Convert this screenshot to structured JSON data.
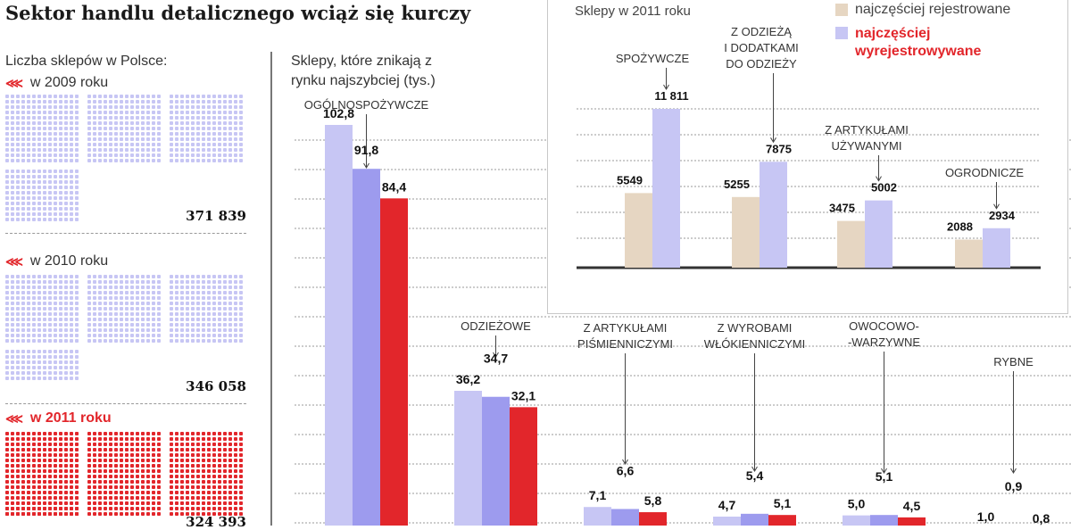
{
  "title": "Sektor handlu detalicznego wciąż się kurczy",
  "left_panel": {
    "label": "Liczba sklepów w Polsce:",
    "years": [
      {
        "label": "w 2009 roku",
        "total": "371 839",
        "highlight": false
      },
      {
        "label": "w 2010 roku",
        "total": "346 058",
        "highlight": false
      },
      {
        "label": "w 2011 roku",
        "total": "324 393",
        "highlight": true
      }
    ]
  },
  "colors": {
    "light": "#c7c6f4",
    "mid": "#9d9bee",
    "red": "#e2262b",
    "beige": "#e6d6c2",
    "grid": "#999999"
  },
  "chart_data": [
    {
      "type": "bar",
      "title": "Sklepy, które znikają z rynku najszybciej (tys.)",
      "categories": [
        "OGÓLNOSPOŻYWCZE",
        "ODZIEŻOWE",
        "Z ARTYKUŁAMI PIŚMIENNICZYMI",
        "Z WYROBAMI WŁÓKIENNICZYMI",
        "OWOCOWO--WARZYWNE",
        "RYBNE"
      ],
      "category_labels": [
        [
          "OGÓLNOSPOŻYWCZE"
        ],
        [
          "ODZIEŻOWE"
        ],
        [
          "Z ARTYKUŁAMI",
          "PIŚMIENNICZYMI"
        ],
        [
          "Z WYROBAMI",
          "WŁÓKIENNICZYMI"
        ],
        [
          "OWOCOWO-",
          "-WARZYWNE"
        ],
        [
          "RYBNE"
        ]
      ],
      "series": [
        {
          "name": "2009",
          "values": [
            102.8,
            36.2,
            7.1,
            4.7,
            5.0,
            1.0
          ],
          "labels": [
            "102,8",
            "36,2",
            "7,1",
            "4,7",
            "5,0",
            "1,0"
          ]
        },
        {
          "name": "2010",
          "values": [
            91.8,
            34.7,
            6.6,
            5.4,
            5.1,
            0.9
          ],
          "labels": [
            "91,8",
            "34,7",
            "6,6",
            "5,4",
            "5,1",
            "0,9"
          ]
        },
        {
          "name": "2011",
          "values": [
            84.4,
            32.1,
            5.8,
            5.1,
            4.5,
            0.8
          ],
          "labels": [
            "84,4",
            "32,1",
            "5,8",
            "5,1",
            "4,5",
            "0,8"
          ]
        }
      ],
      "ylim": [
        0,
        110
      ],
      "grid": true
    },
    {
      "type": "bar",
      "title": "Sklepy w 2011 roku",
      "categories": [
        "SPOŻYWCZE",
        "Z ODZIEŻĄ I DODATKAMI DO ODZIEŻY",
        "Z ARTYKUŁAMI UŻYWANYMI",
        "OGRODNICZE"
      ],
      "category_labels": [
        [
          "SPOŻYWCZE"
        ],
        [
          "Z ODZIEŻĄ",
          "I DODATKAMI",
          "DO ODZIEŻY"
        ],
        [
          "Z ARTYKUŁAMI",
          "UŻYWANYMI"
        ],
        [
          "OGRODNICZE"
        ]
      ],
      "series": [
        {
          "name": "najczęściej rejestrowane",
          "values": [
            5549,
            5255,
            3475,
            2088
          ],
          "labels": [
            "5549",
            "5255",
            "3475",
            "2088"
          ]
        },
        {
          "name": "najczęściej wyrejestrowywane",
          "values": [
            11811,
            7875,
            5002,
            2934
          ],
          "labels": [
            "11 811",
            "7875",
            "5002",
            "2934"
          ]
        }
      ],
      "legend": [
        "najczęściej rejestrowane",
        "najczęściej wyrejestrowywane"
      ],
      "ylim": [
        0,
        13000
      ],
      "grid": true
    }
  ]
}
